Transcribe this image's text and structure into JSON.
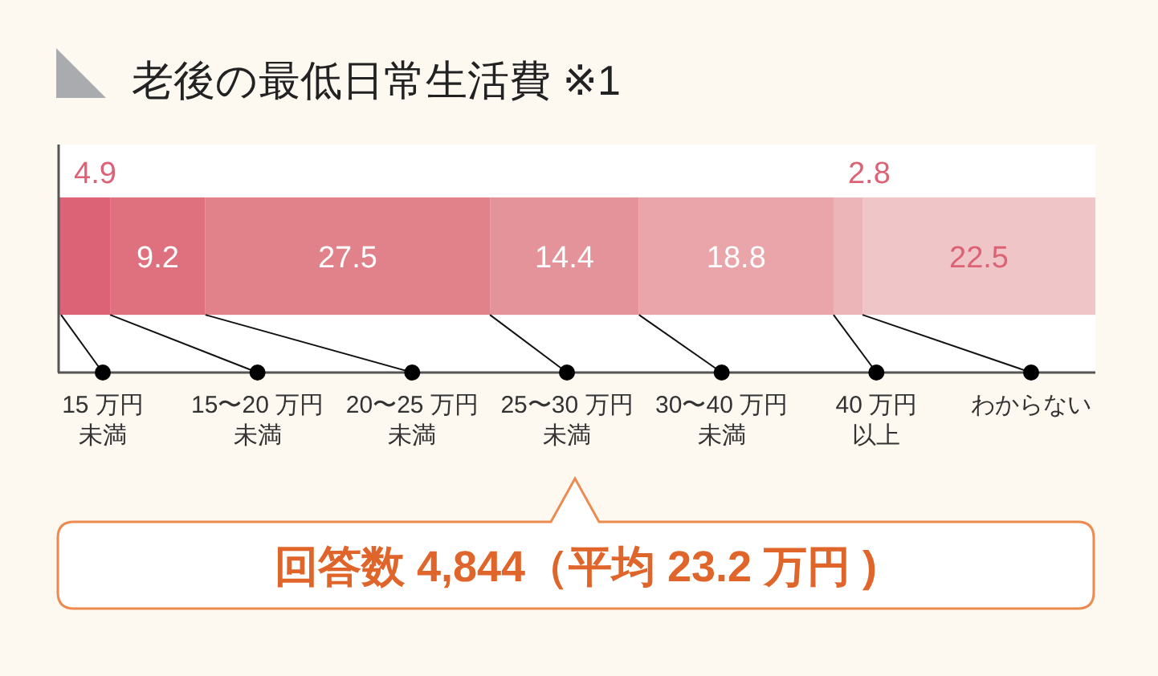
{
  "chart_data": {
    "type": "bar",
    "orientation": "horizontal",
    "stacked": true,
    "data_labels": true,
    "title": "老後の最低日常生活費 ※1",
    "annotations": [
      "回答数 4,844（平均 23.2 万円 )"
    ],
    "categories": [
      null
    ],
    "series": [
      {
        "name": "15 万円未満",
        "color": "#dc6276",
        "values": [
          4.9
        ]
      },
      {
        "name": "15〜20 万円未満",
        "color": "#df717f",
        "values": [
          9.2
        ]
      },
      {
        "name": "20〜25 万円未満",
        "color": "#e1828a",
        "values": [
          27.5
        ]
      },
      {
        "name": "25〜30 万円未満",
        "color": "#e4939a",
        "values": [
          14.4
        ]
      },
      {
        "name": "30〜40 万円未満",
        "color": "#e9a5aa",
        "values": [
          18.8
        ]
      },
      {
        "name": "40 万円以上",
        "color": "#ecb5b8",
        "values": [
          2.8
        ]
      },
      {
        "name": "わからない",
        "color": "#efc5c7",
        "values": [
          22.5
        ]
      }
    ]
  }
}
